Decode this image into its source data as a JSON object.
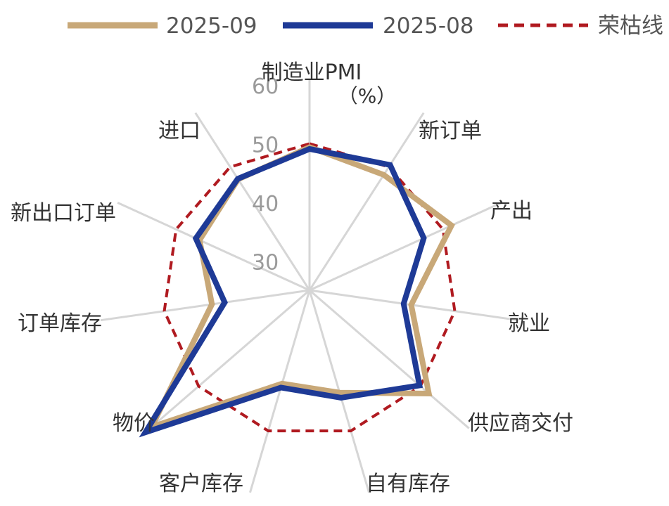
{
  "chart_data": {
    "type": "radar",
    "title": "",
    "axis_title_line1": "制造业PMI",
    "axis_title_line2": "（%）",
    "categories": [
      "制造业PMI",
      "新订单",
      "产出",
      "就业",
      "供应商交付",
      "自有库存",
      "客户库存",
      "物价",
      "订单库存",
      "新出口订单",
      "进口"
    ],
    "r_ticks": [
      30,
      40,
      50,
      60
    ],
    "r_range": [
      25,
      60
    ],
    "grid": true,
    "legend_position": "top",
    "series": [
      {
        "name": "2025-09",
        "color": "#c8a878",
        "dashed": false,
        "values": [
          49.4,
          48.4,
          51.6,
          42.5,
          51.9,
          43.2,
          41.6,
          60.6,
          41.8,
          45.6,
          47.5
        ]
      },
      {
        "name": "2025-08",
        "color": "#1e3a96",
        "dashed": false,
        "values": [
          49.1,
          50.4,
          46.4,
          41.2,
          49.8,
          44.1,
          42.3,
          62.0,
          39.6,
          46.3,
          47.6
        ]
      },
      {
        "name": "荣枯线",
        "color": "#b01a20",
        "dashed": true,
        "values": [
          50,
          50,
          50,
          50,
          50,
          50,
          50,
          50,
          50,
          50,
          50
        ]
      }
    ]
  }
}
